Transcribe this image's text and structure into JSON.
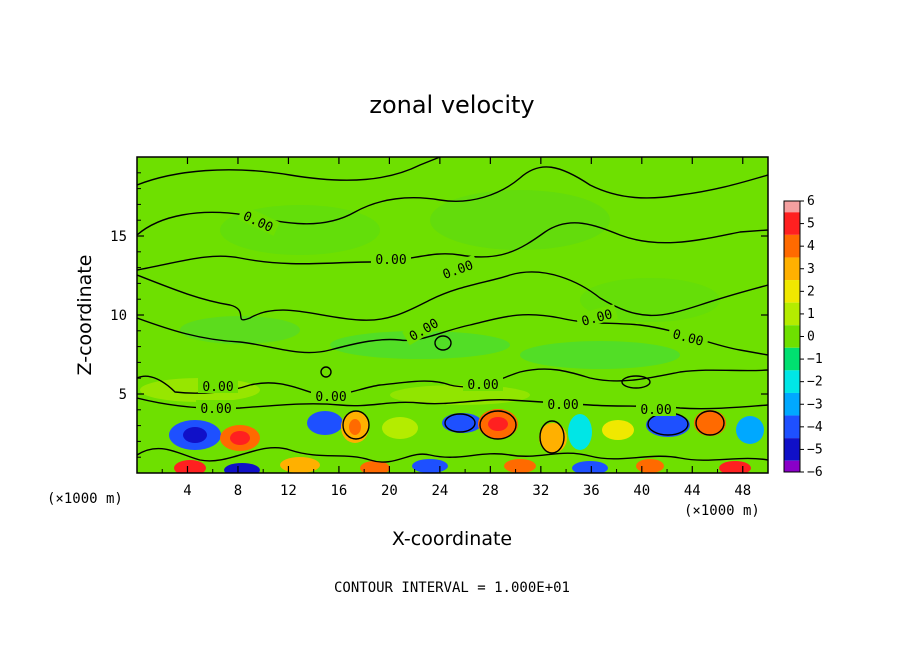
{
  "chart_data": {
    "type": "heatmap",
    "title": "zonal velocity",
    "xlabel": "X-coordinate",
    "ylabel": "Z-coordinate",
    "x_units": "(×1000 m)",
    "y_units": "(×1000 m)",
    "xlim": [
      0,
      50
    ],
    "ylim": [
      0,
      20
    ],
    "x_ticks": [
      4,
      8,
      12,
      16,
      20,
      24,
      28,
      32,
      36,
      40,
      44,
      48
    ],
    "y_ticks": [
      5,
      10,
      15
    ],
    "contour_interval": "CONTOUR INTERVAL = 1.000E+01",
    "contour_label": "0.00",
    "colorbar": {
      "levels": [
        6,
        5,
        4,
        3,
        2,
        1,
        0,
        -1,
        -2,
        -3,
        -4,
        -5,
        -6
      ],
      "level_labels": [
        "6",
        "5",
        "4",
        "3",
        "2",
        "1",
        "0",
        "−1",
        "−2",
        "−3",
        "−4",
        "−5",
        "−6"
      ],
      "colors": [
        "#f4a0a0",
        "#ff2020",
        "#ff6a00",
        "#ffb000",
        "#f0e800",
        "#b4ec00",
        "#6ee000",
        "#00e070",
        "#00e6e6",
        "#00a8ff",
        "#1e50ff",
        "#1010c8",
        "#8a00c8"
      ]
    },
    "background_color": "#6ee000",
    "grid": false
  }
}
